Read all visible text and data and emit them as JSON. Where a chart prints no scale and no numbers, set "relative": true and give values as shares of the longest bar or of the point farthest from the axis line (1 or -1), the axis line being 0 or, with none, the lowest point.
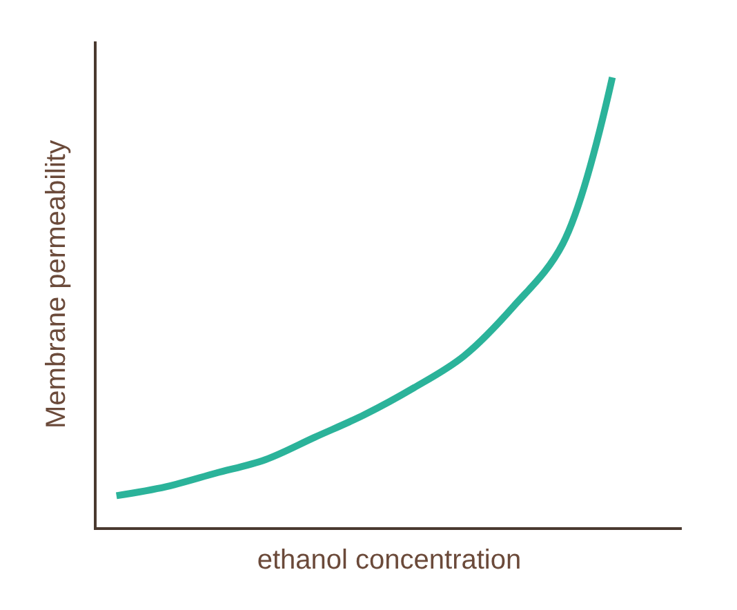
{
  "chart_data": {
    "type": "line",
    "relative": true,
    "xlabel": "ethanol concentration",
    "ylabel": "Membrane permeability",
    "categories": [
      null,
      null,
      null,
      null,
      null,
      null,
      null,
      null,
      null,
      null,
      null
    ],
    "series": [
      {
        "color": "#2bb39a",
        "values": [
          0.07,
          0.09,
          0.12,
          0.15,
          0.2,
          0.25,
          0.31,
          0.38,
          0.49,
          0.63,
          1
        ]
      }
    ],
    "tick_labels": false,
    "legend": false,
    "marker": "none",
    "line_style": "solid"
  }
}
